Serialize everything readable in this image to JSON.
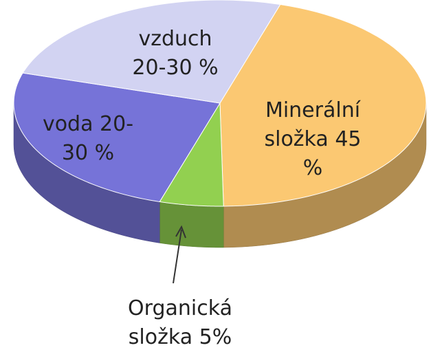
{
  "chart_data": {
    "type": "pie3d",
    "categories": [
      "Minerální složka",
      "Organická složka",
      "voda",
      "vzduch"
    ],
    "values": [
      45,
      5,
      25,
      25
    ],
    "value_labels": [
      "45 %",
      "5%",
      "20-30 %",
      "20-30 %"
    ],
    "colors": [
      "#fbc872",
      "#92d050",
      "#7673d8",
      "#d2d3f2"
    ]
  }
}
